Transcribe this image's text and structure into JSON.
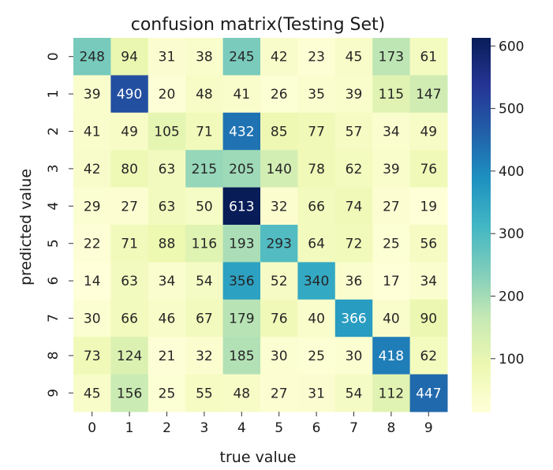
{
  "chart_data": {
    "type": "heatmap",
    "title": "confusion matrix(Testing Set)",
    "xlabel": "true value",
    "ylabel": "predicted value",
    "x_categories": [
      "0",
      "1",
      "2",
      "3",
      "4",
      "5",
      "6",
      "7",
      "8",
      "9"
    ],
    "y_categories": [
      "0",
      "1",
      "2",
      "3",
      "4",
      "5",
      "6",
      "7",
      "8",
      "9"
    ],
    "values": [
      [
        248,
        94,
        31,
        38,
        245,
        42,
        23,
        45,
        173,
        61
      ],
      [
        39,
        490,
        20,
        48,
        41,
        26,
        35,
        39,
        115,
        147
      ],
      [
        41,
        49,
        105,
        71,
        432,
        85,
        77,
        57,
        34,
        49
      ],
      [
        42,
        80,
        63,
        215,
        205,
        140,
        78,
        62,
        39,
        76
      ],
      [
        29,
        27,
        63,
        50,
        613,
        32,
        66,
        74,
        27,
        19
      ],
      [
        22,
        71,
        88,
        116,
        193,
        293,
        64,
        72,
        25,
        56
      ],
      [
        14,
        63,
        34,
        54,
        356,
        52,
        340,
        36,
        17,
        34
      ],
      [
        30,
        66,
        46,
        67,
        179,
        76,
        40,
        366,
        40,
        90
      ],
      [
        73,
        124,
        21,
        32,
        185,
        30,
        25,
        30,
        418,
        62
      ],
      [
        45,
        156,
        25,
        55,
        48,
        27,
        31,
        54,
        112,
        447
      ]
    ],
    "colormap": "YlGnBu",
    "vmin": 14,
    "vmax": 613,
    "colorbar_ticks": [
      100,
      200,
      300,
      400,
      500,
      600
    ],
    "grid": false,
    "legend": "colorbar-right"
  }
}
